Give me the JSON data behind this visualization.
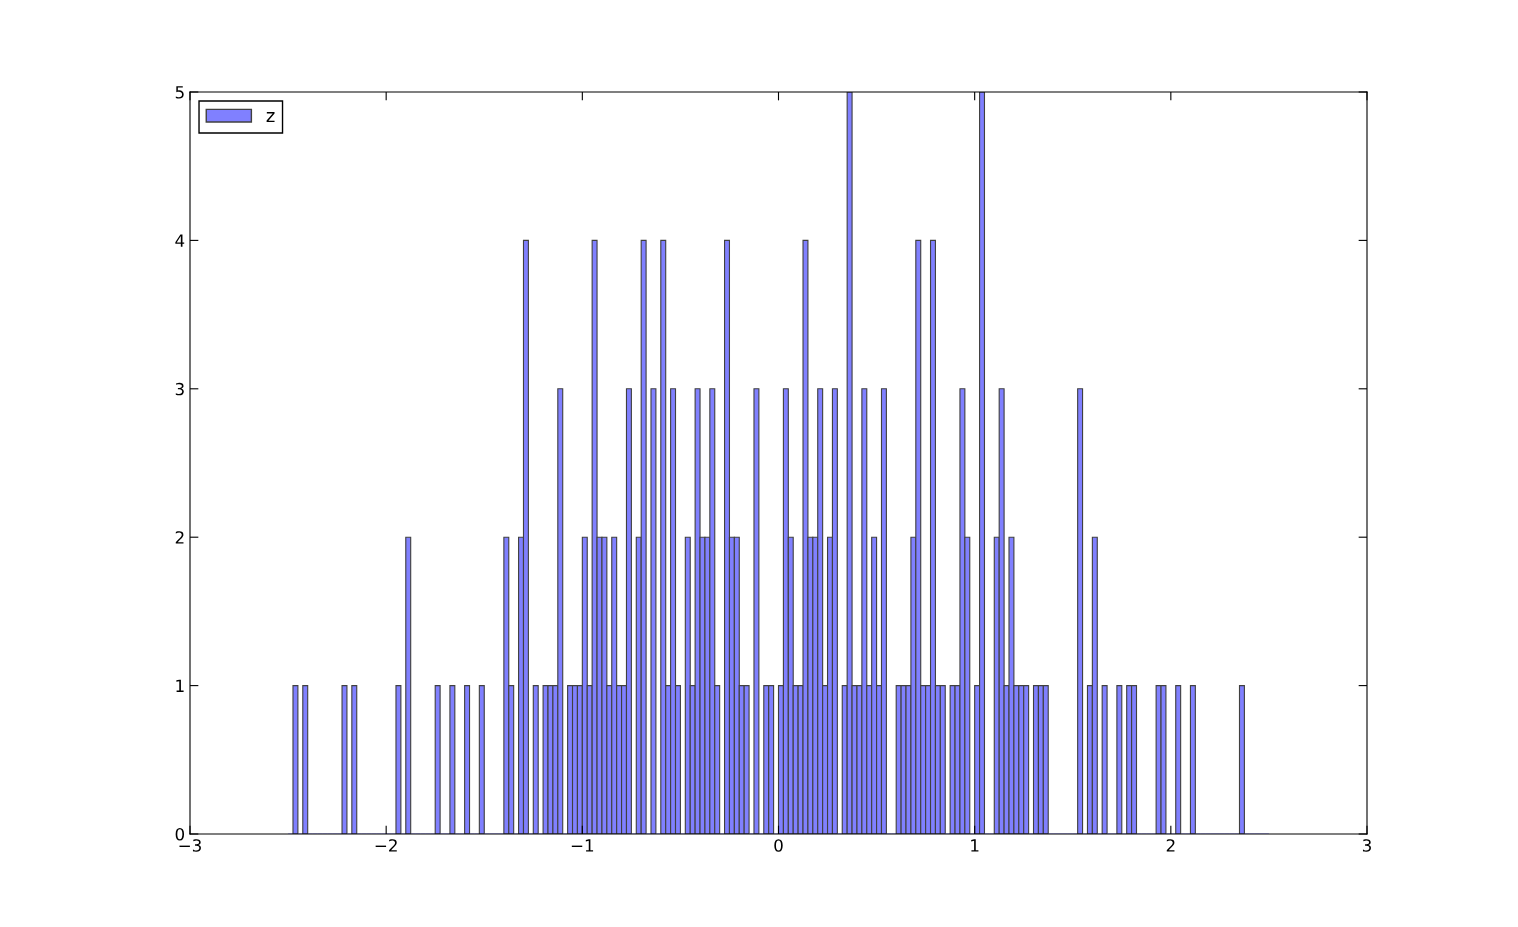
{
  "chart_data": {
    "type": "histogram",
    "bins": [
      -2.5,
      -2.475,
      -2.45,
      -2.425,
      -2.4,
      -2.375,
      -2.35,
      -2.325,
      -2.3,
      -2.275,
      -2.25,
      -2.225,
      -2.2,
      -2.175,
      -2.15,
      -2.125,
      -2.1,
      -2.075,
      -2.05,
      -2.025,
      -2.0,
      -1.975,
      -1.95,
      -1.925,
      -1.9,
      -1.875,
      -1.85,
      -1.825,
      -1.8,
      -1.775,
      -1.75,
      -1.725,
      -1.7,
      -1.675,
      -1.65,
      -1.625,
      -1.6,
      -1.575,
      -1.55,
      -1.525,
      -1.5,
      -1.475,
      -1.45,
      -1.425,
      -1.4,
      -1.375,
      -1.35,
      -1.325,
      -1.3,
      -1.275,
      -1.25,
      -1.225,
      -1.2,
      -1.175,
      -1.15,
      -1.125,
      -1.1,
      -1.075,
      -1.05,
      -1.025,
      -1.0,
      -0.975,
      -0.95,
      -0.925,
      -0.9,
      -0.875,
      -0.85,
      -0.825,
      -0.8,
      -0.775,
      -0.75,
      -0.725,
      -0.7,
      -0.675,
      -0.65,
      -0.625,
      -0.6,
      -0.575,
      -0.55,
      -0.525,
      -0.5,
      -0.475,
      -0.45,
      -0.425,
      -0.4,
      -0.375,
      -0.35,
      -0.325,
      -0.3,
      -0.275,
      -0.25,
      -0.225,
      -0.2,
      -0.175,
      -0.15,
      -0.125,
      -0.1,
      -0.075,
      -0.05,
      -0.025,
      0.0,
      0.025,
      0.05,
      0.075,
      0.1,
      0.125,
      0.15,
      0.175,
      0.2,
      0.225,
      0.25,
      0.275,
      0.3,
      0.325,
      0.35,
      0.375,
      0.4,
      0.425,
      0.45,
      0.475,
      0.5,
      0.525,
      0.55,
      0.575,
      0.6,
      0.625,
      0.65,
      0.675,
      0.7,
      0.725,
      0.75,
      0.775,
      0.8,
      0.825,
      0.85,
      0.875,
      0.9,
      0.925,
      0.95,
      0.975,
      1.0,
      1.025,
      1.05,
      1.075,
      1.1,
      1.125,
      1.15,
      1.175,
      1.2,
      1.225,
      1.25,
      1.275,
      1.3,
      1.325,
      1.35,
      1.375,
      1.4,
      1.425,
      1.45,
      1.475,
      1.5,
      1.525,
      1.55,
      1.575,
      1.6,
      1.625,
      1.65,
      1.675,
      1.7,
      1.725,
      1.75,
      1.775,
      1.8,
      1.825,
      1.85,
      1.875,
      1.9,
      1.925,
      1.95,
      1.975,
      2.0,
      2.025,
      2.05,
      2.075,
      2.1,
      2.125,
      2.15,
      2.175,
      2.2,
      2.225,
      2.25,
      2.275,
      2.3,
      2.325,
      2.35,
      2.375,
      2.4,
      2.425,
      2.45,
      2.475,
      2.5
    ],
    "series": [
      {
        "name": "z",
        "color": "#8080ff",
        "values": [
          0,
          1,
          0,
          1,
          0,
          0,
          0,
          0,
          0,
          0,
          0,
          1,
          0,
          1,
          0,
          0,
          0,
          0,
          0,
          0,
          0,
          0,
          1,
          0,
          2,
          0,
          0,
          0,
          0,
          0,
          1,
          0,
          0,
          1,
          0,
          0,
          1,
          0,
          0,
          1,
          0,
          0,
          0,
          0,
          2,
          1,
          0,
          2,
          4,
          0,
          1,
          0,
          1,
          1,
          1,
          3,
          0,
          1,
          1,
          1,
          2,
          1,
          4,
          2,
          2,
          1,
          2,
          1,
          1,
          3,
          0,
          2,
          4,
          0,
          3,
          0,
          4,
          1,
          3,
          1,
          0,
          2,
          1,
          3,
          2,
          2,
          3,
          1,
          0,
          4,
          2,
          2,
          1,
          1,
          0,
          3,
          0,
          1,
          1,
          0,
          1,
          3,
          2,
          1,
          1,
          4,
          2,
          2,
          3,
          1,
          2,
          3,
          0,
          1,
          5,
          1,
          1,
          3,
          1,
          2,
          1,
          3,
          0,
          0,
          1,
          1,
          1,
          2,
          4,
          1,
          1,
          4,
          1,
          1,
          0,
          1,
          1,
          3,
          2,
          0,
          1,
          5,
          0,
          0,
          2,
          3,
          1,
          2,
          1,
          1,
          1,
          0,
          1,
          1,
          1,
          0,
          0,
          0,
          0,
          0,
          0,
          3,
          0,
          1,
          2,
          0,
          1,
          0,
          0,
          1,
          0,
          1,
          1,
          0,
          0,
          0,
          0,
          1,
          1,
          0,
          0,
          1,
          0,
          0,
          1,
          0,
          0,
          0,
          0,
          0,
          0,
          0,
          0,
          0,
          1,
          0,
          0,
          0,
          0,
          0
        ]
      }
    ],
    "xlim": [
      -3,
      3
    ],
    "xticks": [
      {
        "value": -3,
        "label": "−3"
      },
      {
        "value": -2,
        "label": "−2"
      },
      {
        "value": -1,
        "label": "−1"
      },
      0,
      1,
      2,
      3
    ],
    "ylim": [
      0,
      5
    ],
    "yticks": [
      0,
      1,
      2,
      3,
      4,
      5
    ],
    "legend": "top left",
    "grid": false
  }
}
